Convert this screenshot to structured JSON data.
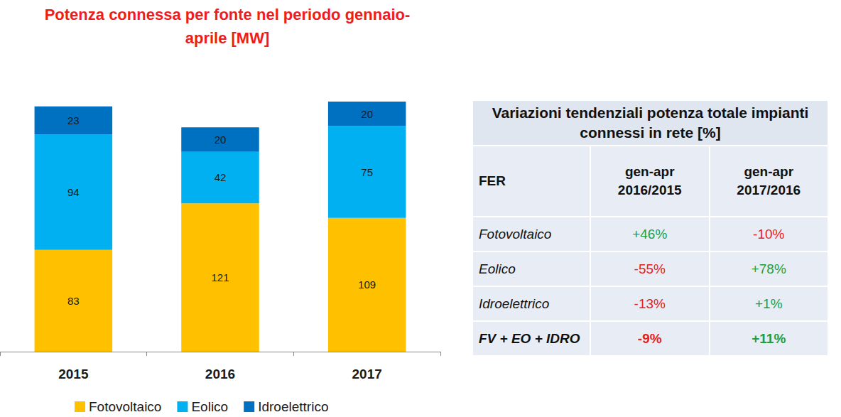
{
  "chart_data": {
    "type": "bar",
    "title": "Potenza connessa per fonte nel periodo gennaio-aprile [MW]",
    "categories": [
      "2015",
      "2016",
      "2017"
    ],
    "series": [
      {
        "name": "Fotovoltaico",
        "color": "#ffc000",
        "values": [
          83,
          121,
          109
        ]
      },
      {
        "name": "Eolico",
        "color": "#00b0f0",
        "values": [
          94,
          42,
          75
        ]
      },
      {
        "name": "Idroelettrico",
        "color": "#0070c0",
        "values": [
          23,
          20,
          20
        ]
      }
    ],
    "totals": [
      200,
      183,
      204
    ],
    "stacked": true,
    "data_labels": true,
    "legend": "bottom",
    "grid": false,
    "tick_labels": "x",
    "ylim": [
      0,
      230
    ]
  },
  "table": {
    "title": "Variazioni tendenziali potenza totale impianti connessi in rete [%]",
    "header": [
      "FER",
      "gen-apr 2016/2015",
      "gen-apr 2017/2016"
    ],
    "rows": [
      [
        "Fotovoltaico",
        "+46%",
        "-10%"
      ],
      [
        "Eolico",
        "-55%",
        "+78%"
      ],
      [
        "Idroelettrico",
        "-13%",
        "+1%"
      ],
      [
        "FV + EO + IDRO",
        "-9%",
        "+11%"
      ]
    ]
  }
}
